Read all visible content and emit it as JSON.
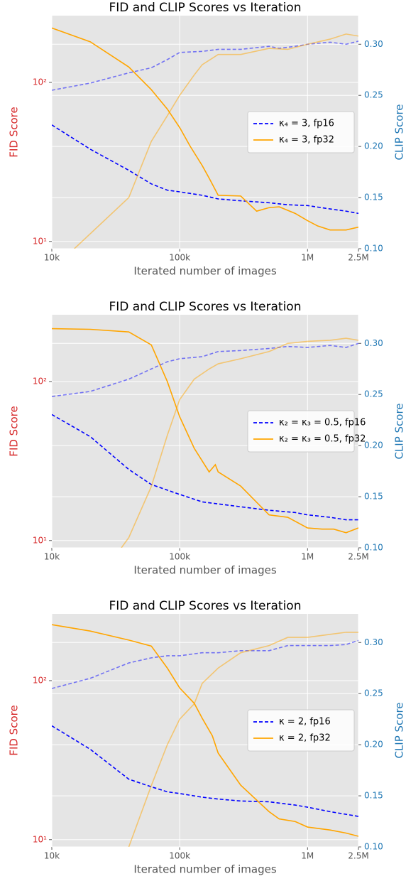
{
  "chart_data": [
    {
      "type": "line",
      "title": "FID and CLIP Scores vs Iteration",
      "xlabel": "Iterated number of images",
      "ylabel": "FID Score",
      "y2label": "CLIP Score",
      "ylabel_color": "#d62728",
      "y2label_color": "#1f77b4",
      "xlog": true,
      "ylog": true,
      "grid": true,
      "legend": "center right",
      "xlim": [
        10000,
        2500000
      ],
      "xticks": [
        {
          "value": 10000,
          "label": "10k"
        },
        {
          "value": 100000,
          "label": "100k"
        },
        {
          "value": 1000000,
          "label": "1M"
        },
        {
          "value": 2500000,
          "label": "2.5M"
        }
      ],
      "ylim": [
        9,
        263
      ],
      "yticks": [
        {
          "value": 10,
          "label": "10¹"
        },
        {
          "value": 100,
          "label": "10²"
        }
      ],
      "y2lim": [
        0.1,
        0.328
      ],
      "y2ticks": [
        {
          "value": 0.1,
          "label": "0.10"
        },
        0.15,
        {
          "value": 0.2,
          "label": "0.20"
        },
        0.25,
        {
          "value": 0.3,
          "label": "0.30"
        }
      ],
      "series": [
        {
          "name": "κ₄ = 3, fp16",
          "color": "#0000ff",
          "linestyle": "dashed",
          "x": [
            10000,
            20000,
            40000,
            60000,
            80000,
            100000,
            150000,
            200000,
            300000,
            500000,
            700000,
            1000000,
            1500000,
            2000000,
            2500000
          ],
          "values": [
            54,
            38,
            28,
            23,
            21,
            20.5,
            19.5,
            18.5,
            18,
            17.5,
            17,
            16.8,
            16,
            15.5,
            15
          ]
        },
        {
          "name": "κ₄ = 3, fp32",
          "color": "#ffa500",
          "linestyle": "solid",
          "x": [
            10000,
            20000,
            40000,
            60000,
            80000,
            100000,
            120000,
            150000,
            170000,
            200000,
            300000,
            400000,
            500000,
            600000,
            800000,
            1000000,
            1200000,
            1500000,
            2000000,
            2500000
          ],
          "values": [
            220,
            180,
            125,
            90,
            68,
            52,
            40,
            30,
            25,
            19.5,
            19.3,
            15.5,
            16.3,
            16.5,
            15,
            13.5,
            12.5,
            11.8,
            11.8,
            12.3
          ]
        },
        {
          "color": "#0000ff",
          "linestyle": "dashed",
          "alpha": 0.5,
          "axis": "y2",
          "x": [
            10000,
            20000,
            40000,
            60000,
            80000,
            100000,
            150000,
            200000,
            300000,
            500000,
            600000,
            800000,
            1000000,
            1500000,
            2000000,
            2500000
          ],
          "values": [
            0.255,
            0.262,
            0.272,
            0.277,
            0.285,
            0.292,
            0.293,
            0.295,
            0.295,
            0.298,
            0.296,
            0.298,
            0.3,
            0.302,
            0.3,
            0.303
          ]
        },
        {
          "color": "#ffa500",
          "linestyle": "solid",
          "alpha": 0.5,
          "axis": "y2",
          "x": [
            15000,
            40000,
            60000,
            80000,
            100000,
            130000,
            150000,
            200000,
            300000,
            500000,
            700000,
            1000000,
            1500000,
            2000000,
            2500000
          ],
          "values": [
            0.1,
            0.15,
            0.205,
            0.23,
            0.25,
            0.27,
            0.28,
            0.29,
            0.29,
            0.296,
            0.295,
            0.3,
            0.305,
            0.31,
            0.308
          ]
        }
      ]
    },
    {
      "type": "line",
      "title": "FID and CLIP Scores vs Iteration",
      "xlabel": "Iterated number of images",
      "ylabel": "FID Score",
      "y2label": "CLIP Score",
      "ylabel_color": "#d62728",
      "y2label_color": "#1f77b4",
      "xlog": true,
      "ylog": true,
      "grid": true,
      "legend": "center right",
      "xlim": [
        10000,
        2500000
      ],
      "xticks": [
        {
          "value": 10000,
          "label": "10k"
        },
        {
          "value": 100000,
          "label": "100k"
        },
        {
          "value": 1000000,
          "label": "1M"
        },
        {
          "value": 2500000,
          "label": "2.5M"
        }
      ],
      "ylim": [
        9,
        263
      ],
      "yticks": [
        {
          "value": 10,
          "label": "10¹"
        },
        {
          "value": 100,
          "label": "10²"
        }
      ],
      "y2lim": [
        0.1,
        0.328
      ],
      "y2ticks": [
        {
          "value": 0.1,
          "label": "0.10"
        },
        0.15,
        {
          "value": 0.2,
          "label": "0.20"
        },
        0.25,
        {
          "value": 0.3,
          "label": "0.30"
        }
      ],
      "series": [
        {
          "name": "κ₂ = κ₃ = 0.5, fp16",
          "color": "#0000ff",
          "linestyle": "dashed",
          "x": [
            10000,
            20000,
            40000,
            60000,
            100000,
            150000,
            200000,
            300000,
            500000,
            800000,
            1000000,
            1500000,
            2000000,
            2500000
          ],
          "values": [
            62,
            45,
            28,
            22.5,
            19.5,
            17.5,
            17,
            16.3,
            15.5,
            15,
            14.5,
            14,
            13.5,
            13.5
          ]
        },
        {
          "name": "κ₂ = κ₃ = 0.5, fp32",
          "color": "#ffa500",
          "linestyle": "solid",
          "x": [
            10000,
            20000,
            40000,
            60000,
            80000,
            100000,
            130000,
            170000,
            190000,
            200000,
            300000,
            500000,
            700000,
            1000000,
            1300000,
            1600000,
            2000000,
            2500000
          ],
          "values": [
            215,
            213,
            205,
            170,
            100,
            60,
            38,
            27,
            30,
            27,
            22,
            14.5,
            14,
            12,
            11.8,
            11.8,
            11.2,
            12
          ]
        },
        {
          "color": "#0000ff",
          "linestyle": "dashed",
          "alpha": 0.5,
          "axis": "y2",
          "x": [
            10000,
            20000,
            40000,
            60000,
            80000,
            100000,
            150000,
            200000,
            300000,
            500000,
            700000,
            1000000,
            1500000,
            2000000,
            2500000
          ],
          "values": [
            0.248,
            0.253,
            0.265,
            0.275,
            0.282,
            0.285,
            0.287,
            0.292,
            0.293,
            0.295,
            0.297,
            0.296,
            0.298,
            0.296,
            0.3
          ]
        },
        {
          "color": "#ffa500",
          "linestyle": "solid",
          "alpha": 0.5,
          "axis": "y2",
          "x": [
            35000,
            40000,
            60000,
            80000,
            100000,
            130000,
            170000,
            200000,
            300000,
            500000,
            700000,
            1000000,
            1500000,
            2000000,
            2500000
          ],
          "values": [
            0.1,
            0.11,
            0.16,
            0.21,
            0.245,
            0.265,
            0.275,
            0.28,
            0.285,
            0.292,
            0.3,
            0.302,
            0.303,
            0.305,
            0.303
          ]
        }
      ]
    },
    {
      "type": "line",
      "title": "FID and CLIP Scores vs Iteration",
      "xlabel": "Iterated number of images",
      "ylabel": "FID Score",
      "y2label": "CLIP Score",
      "ylabel_color": "#d62728",
      "y2label_color": "#1f77b4",
      "xlog": true,
      "ylog": true,
      "grid": true,
      "legend": "center right",
      "xlim": [
        10000,
        2500000
      ],
      "xticks": [
        {
          "value": 10000,
          "label": "10k"
        },
        {
          "value": 100000,
          "label": "100k"
        },
        {
          "value": 1000000,
          "label": "1M"
        },
        {
          "value": 2500000,
          "label": "2.5M"
        }
      ],
      "ylim": [
        9,
        263
      ],
      "yticks": [
        {
          "value": 10,
          "label": "10¹"
        },
        {
          "value": 100,
          "label": "10²"
        }
      ],
      "y2lim": [
        0.1,
        0.328
      ],
      "y2ticks": [
        {
          "value": 0.1,
          "label": "0.10"
        },
        0.15,
        {
          "value": 0.2,
          "label": "0.20"
        },
        0.25,
        {
          "value": 0.3,
          "label": "0.30"
        }
      ],
      "series": [
        {
          "name": "κ = 2, fp16",
          "color": "#0000ff",
          "linestyle": "dashed",
          "x": [
            10000,
            20000,
            40000,
            60000,
            80000,
            100000,
            150000,
            200000,
            300000,
            500000,
            800000,
            1000000,
            1500000,
            2500000
          ],
          "values": [
            52,
            37,
            24,
            21.5,
            20,
            19.5,
            18.5,
            18,
            17.5,
            17.3,
            16.5,
            16,
            15,
            14
          ]
        },
        {
          "name": "κ = 2, fp32",
          "color": "#ffa500",
          "linestyle": "solid",
          "x": [
            10000,
            20000,
            40000,
            60000,
            80000,
            100000,
            130000,
            150000,
            180000,
            200000,
            300000,
            500000,
            600000,
            800000,
            1000000,
            1500000,
            2000000,
            2500000
          ],
          "values": [
            225,
            205,
            180,
            165,
            120,
            90,
            72,
            58,
            45,
            35,
            22,
            15,
            13.5,
            13,
            12,
            11.5,
            11,
            10.5
          ]
        },
        {
          "color": "#0000ff",
          "linestyle": "dashed",
          "alpha": 0.5,
          "axis": "y2",
          "x": [
            10000,
            20000,
            40000,
            60000,
            80000,
            100000,
            150000,
            200000,
            300000,
            500000,
            700000,
            1000000,
            1500000,
            2000000,
            2500000
          ],
          "values": [
            0.255,
            0.265,
            0.28,
            0.285,
            0.287,
            0.287,
            0.29,
            0.29,
            0.292,
            0.292,
            0.297,
            0.297,
            0.297,
            0.298,
            0.302
          ]
        },
        {
          "color": "#ffa500",
          "linestyle": "solid",
          "alpha": 0.5,
          "axis": "y2",
          "x": [
            40000,
            60000,
            80000,
            100000,
            130000,
            150000,
            200000,
            300000,
            500000,
            700000,
            1000000,
            1500000,
            2000000,
            2500000
          ],
          "values": [
            0.1,
            0.16,
            0.2,
            0.225,
            0.24,
            0.26,
            0.275,
            0.29,
            0.297,
            0.305,
            0.305,
            0.308,
            0.31,
            0.31
          ]
        }
      ]
    }
  ]
}
